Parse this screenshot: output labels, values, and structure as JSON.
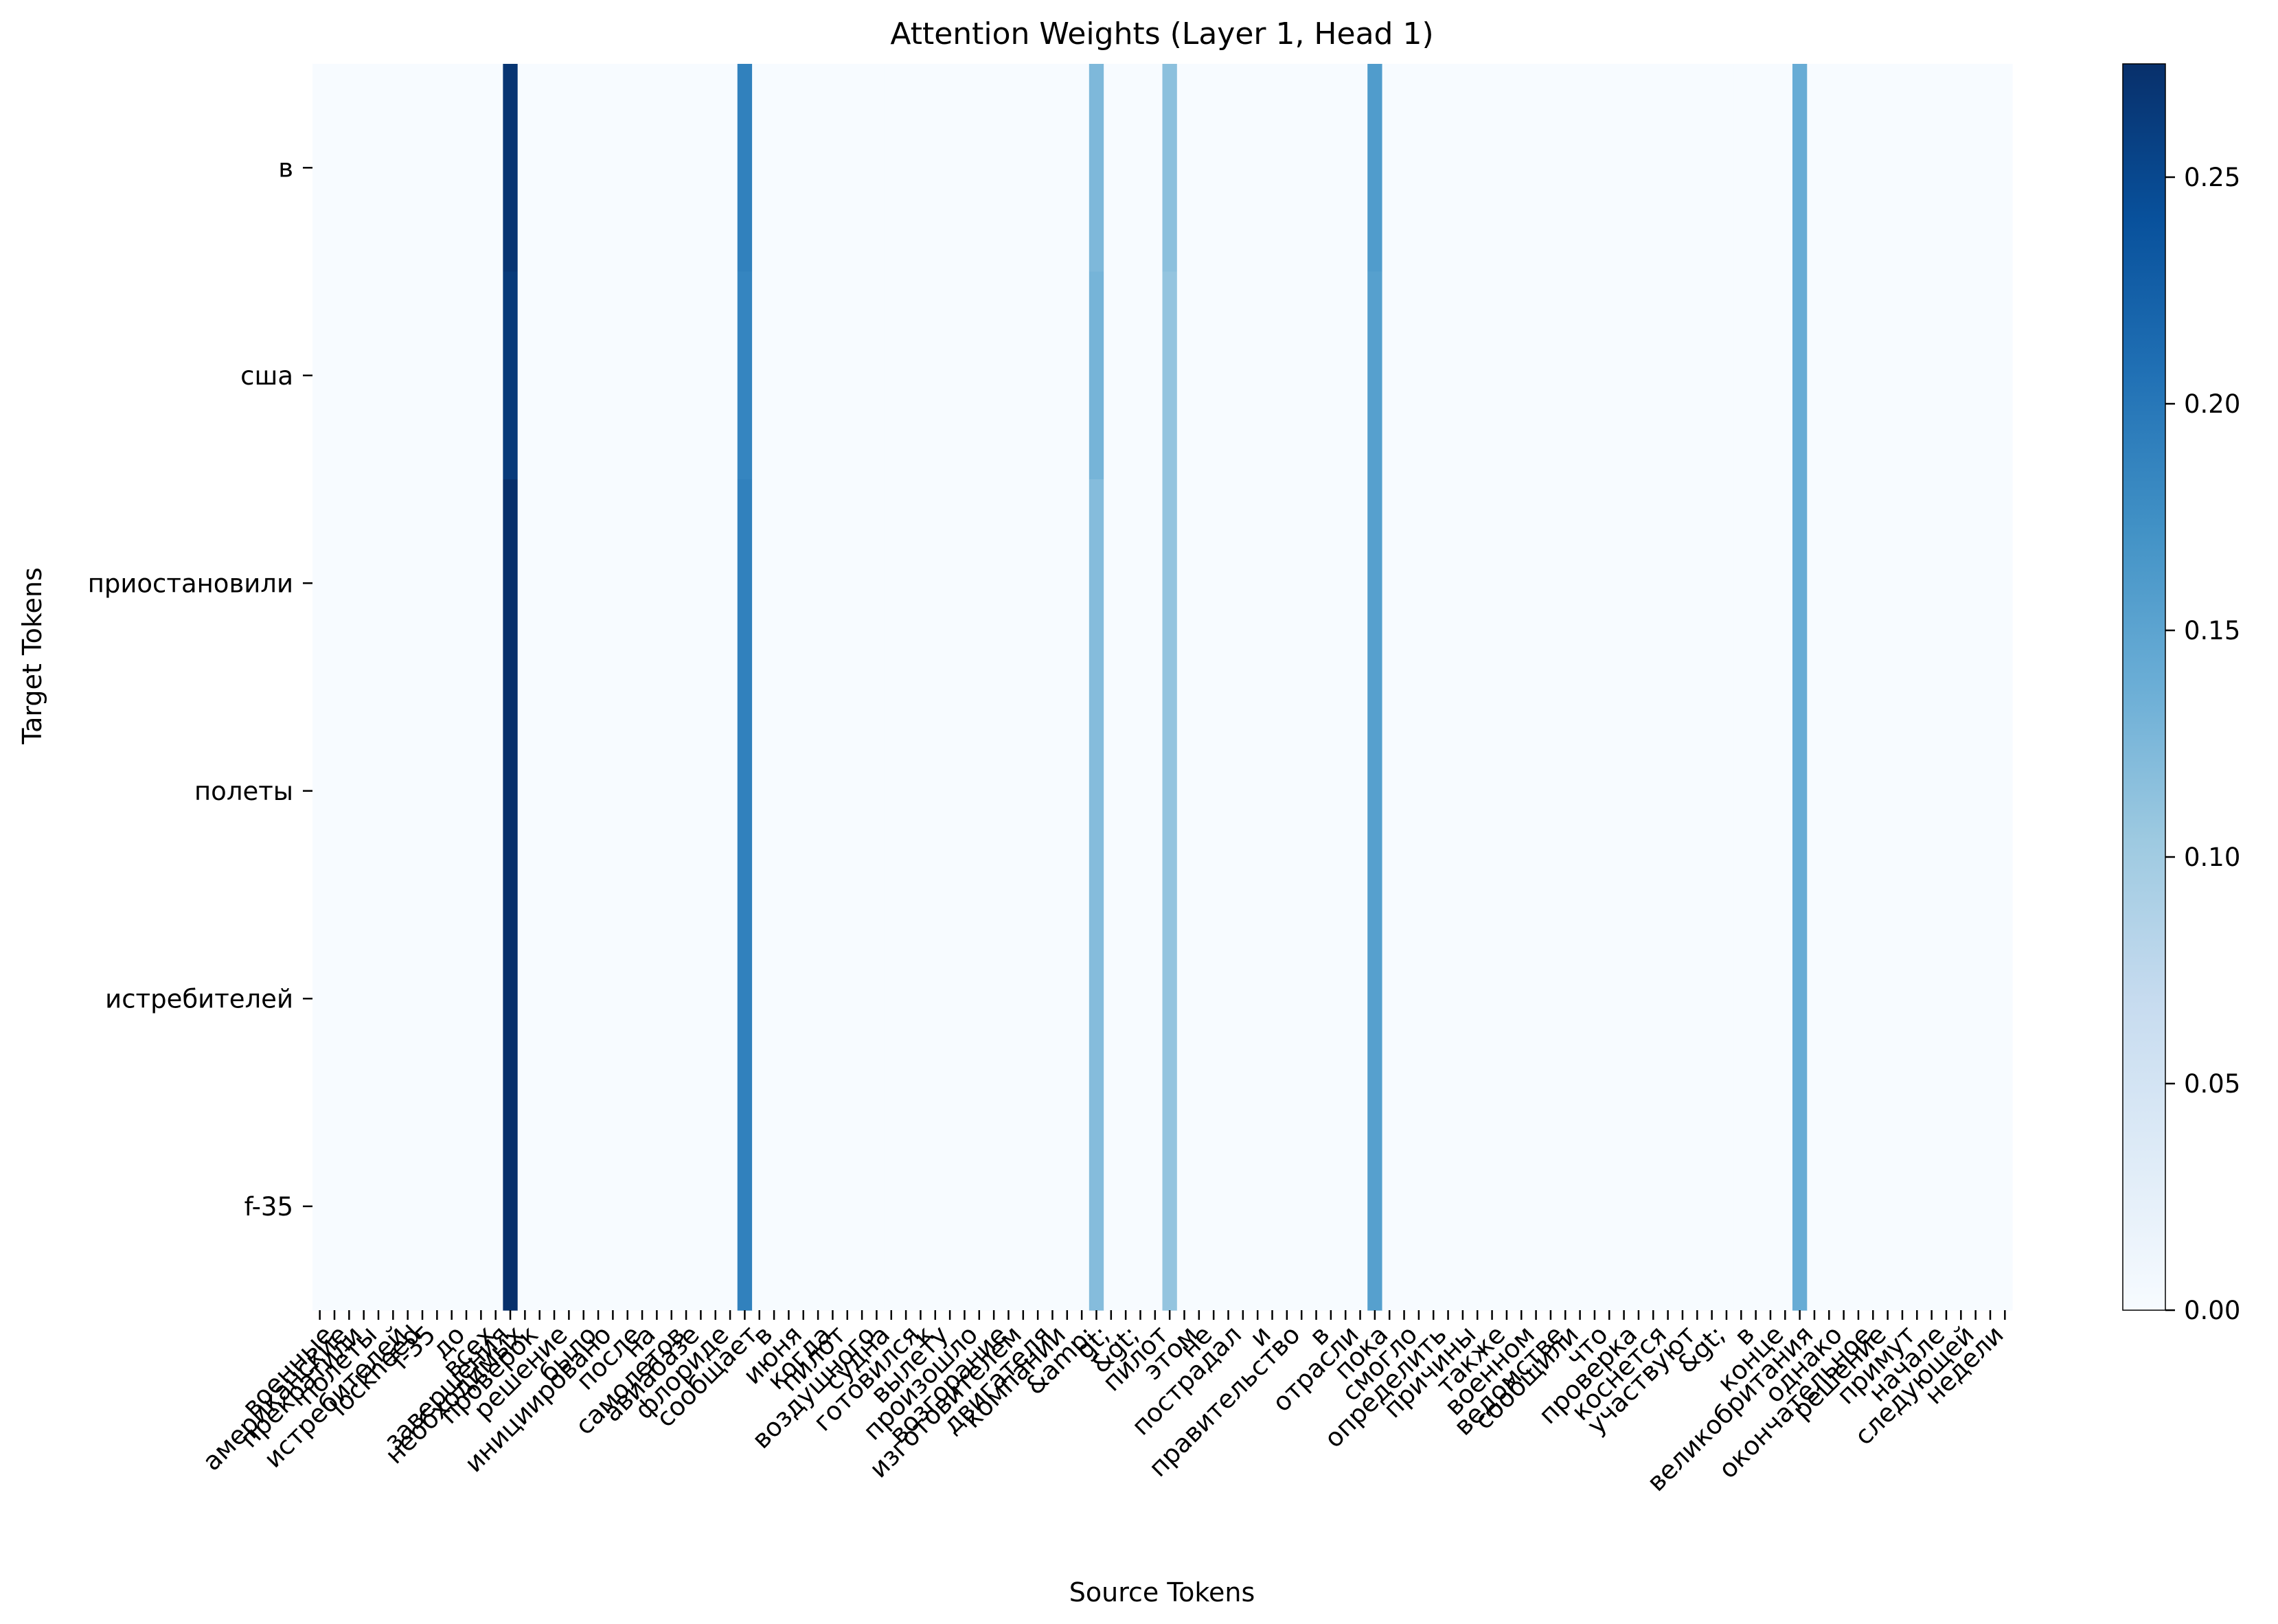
{
  "chart_data": {
    "type": "heatmap",
    "title": "Attention Weights (Layer 1, Head 1)",
    "xlabel": "Source Tokens",
    "ylabel": "Target Tokens",
    "y_tokens": [
      "в",
      "сша",
      "приостановили",
      "полеты",
      "истребителей",
      "f-35"
    ],
    "x_tokens": [
      "",
      "военные",
      "американские",
      "прекратили",
      "полеты",
      "",
      "истребителей",
      "lockheed",
      "f-35",
      "",
      "до",
      "",
      "всех",
      "завершения",
      "необходимых",
      "проверок",
      "",
      "решение",
      "",
      "было",
      "инициировано",
      "",
      "после",
      "на",
      "",
      "самолетов",
      "авиабазе",
      "",
      "флориде",
      "",
      "сообщает",
      "в",
      "",
      "июня",
      "",
      "когда",
      "пилот",
      "",
      "воздушного",
      "судна",
      "",
      "готовился",
      "к",
      "вылету",
      "",
      "произошло",
      "",
      "возгорание",
      "изготовителем",
      "",
      "двигателя",
      "компании",
      "",
      "&amp;",
      "gt;",
      "",
      "&gt;",
      "",
      "пилот",
      "",
      "этом",
      "не",
      "",
      "пострадал",
      "",
      "и",
      "",
      "правительство",
      "",
      "в",
      "",
      "отрасли",
      "",
      "пока",
      "",
      "смогло",
      "",
      "определить",
      "",
      "причины",
      "",
      "также",
      "",
      "военном",
      "",
      "ведомстве",
      "сообщили",
      "",
      "что",
      "",
      "проверка",
      "",
      "коснется",
      "",
      "участвуют",
      "",
      "&gt;",
      "",
      "в",
      "",
      "конце",
      "",
      "великобритания",
      "",
      "однако",
      "",
      "окончательное",
      "решение",
      "",
      "примут",
      "",
      "начале",
      "",
      "следующей",
      "",
      "недели"
    ],
    "hot_columns": [
      {
        "index": 13,
        "values": [
          0.27,
          0.265,
          0.275,
          0.275,
          0.275,
          0.275
        ]
      },
      {
        "index": 29,
        "values": [
          0.19,
          0.185,
          0.19,
          0.19,
          0.19,
          0.19
        ]
      },
      {
        "index": 53,
        "values": [
          0.125,
          0.13,
          0.12,
          0.12,
          0.12,
          0.12
        ]
      },
      {
        "index": 58,
        "values": [
          0.115,
          0.11,
          0.11,
          0.11,
          0.11,
          0.11
        ]
      },
      {
        "index": 72,
        "values": [
          0.16,
          0.155,
          0.155,
          0.155,
          0.155,
          0.155
        ]
      },
      {
        "index": 101,
        "values": [
          0.14,
          0.14,
          0.14,
          0.14,
          0.14,
          0.14
        ]
      }
    ],
    "vmin": 0,
    "vmax": 0.275,
    "colormap": "Blues",
    "colorbar_ticks": [
      "0.00",
      "0.05",
      "0.10",
      "0.15",
      "0.20",
      "0.25"
    ]
  }
}
